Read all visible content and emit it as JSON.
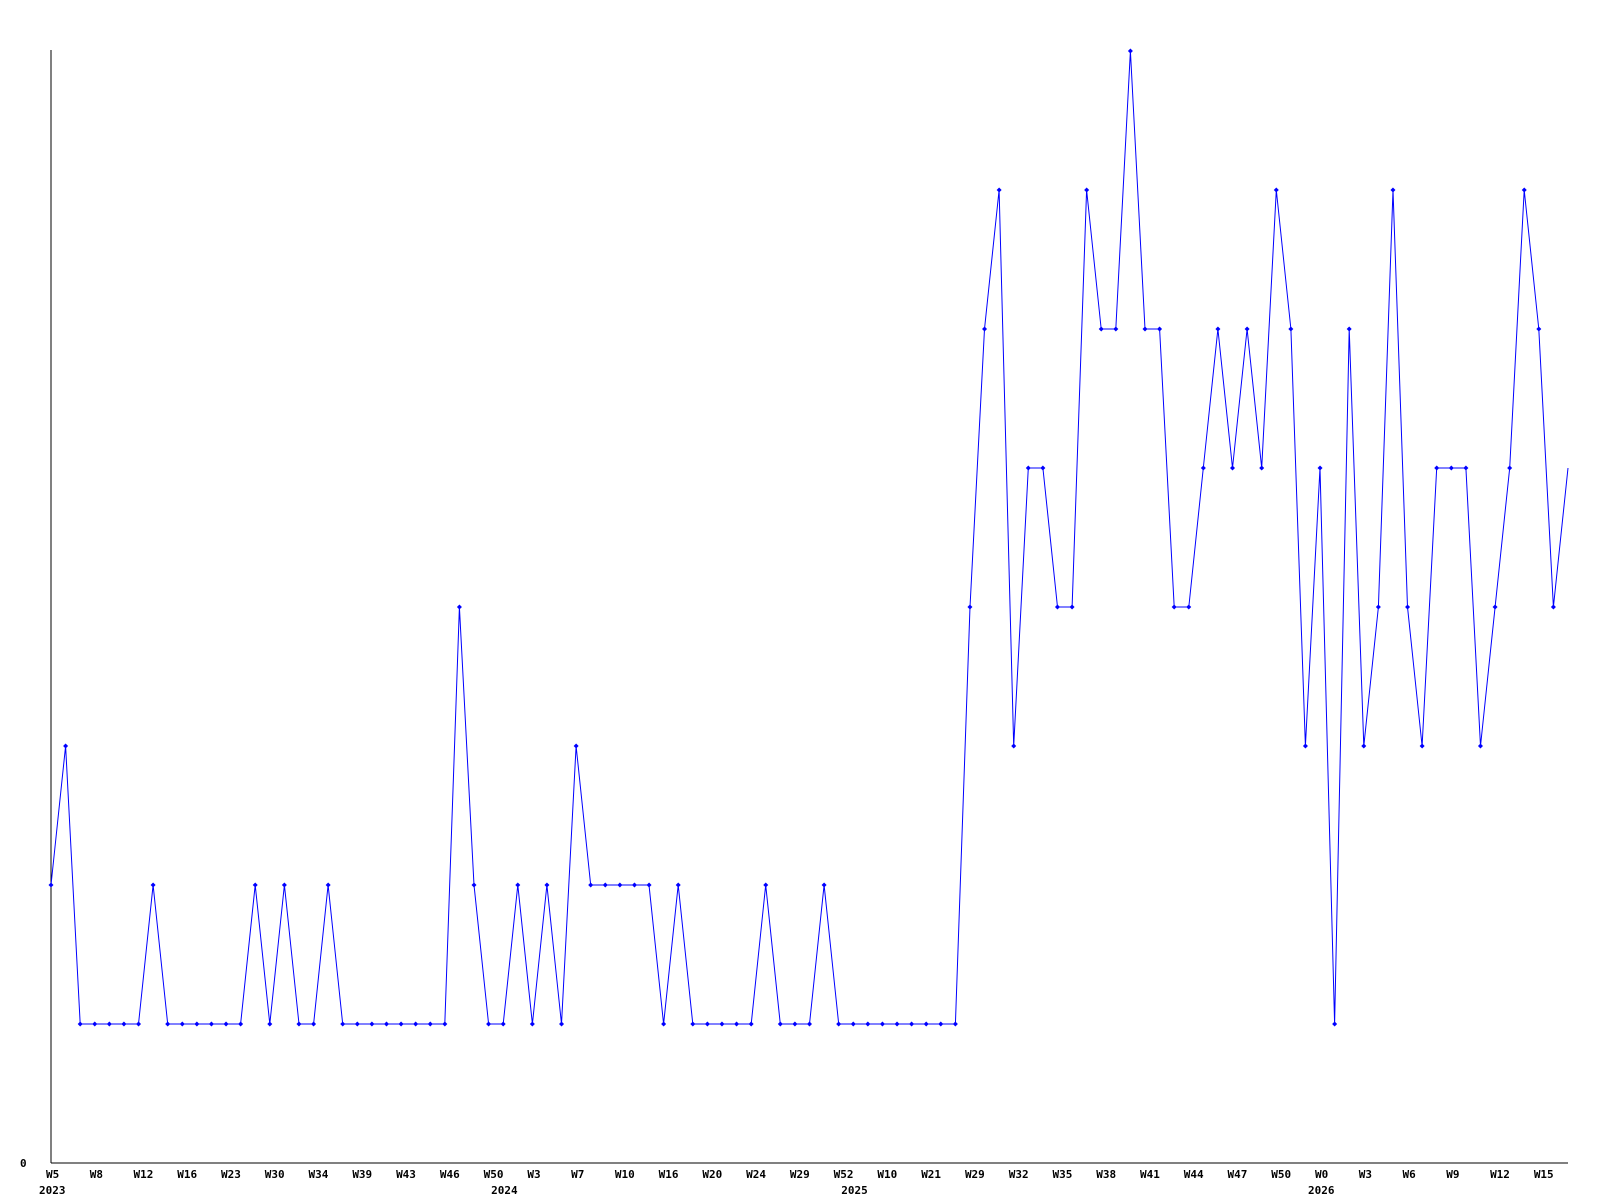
{
  "chart_data": {
    "type": "line",
    "title": "",
    "xlabel": "",
    "ylabel": "",
    "ylim": [
      0,
      8
    ],
    "y_tick_labels": [
      "0"
    ],
    "grid": false,
    "legend": "none",
    "series_color": "#0000ff",
    "x_tick_labels": [
      "W5",
      "W8",
      "W12",
      "W16",
      "W23",
      "W30",
      "W34",
      "W39",
      "W43",
      "W46",
      "W50",
      "W3",
      "W7",
      "W10",
      "W16",
      "W20",
      "W24",
      "W29",
      "W52",
      "W10",
      "W21",
      "W29",
      "W32",
      "W35",
      "W38",
      "W41",
      "W44",
      "W47",
      "W50",
      "W0",
      "W3",
      "W6",
      "W9",
      "W12",
      "W15"
    ],
    "x_tick_every": 3,
    "year_labels": [
      {
        "label": "2023",
        "index": 0
      },
      {
        "label": "2024",
        "index": 31
      },
      {
        "label": "2025",
        "index": 55
      },
      {
        "label": "2026",
        "index": 87
      }
    ],
    "series": [
      {
        "values": [
          2,
          3,
          1,
          1,
          1,
          1,
          1,
          2,
          1,
          1,
          1,
          1,
          1,
          1,
          2,
          1,
          2,
          1,
          1,
          2,
          1,
          1,
          1,
          1,
          1,
          1,
          1,
          1,
          4,
          2,
          1,
          1,
          2,
          1,
          2,
          1,
          3,
          2,
          2,
          2,
          2,
          2,
          1,
          2,
          1,
          1,
          1,
          1,
          1,
          2,
          1,
          1,
          1,
          2,
          1,
          1,
          1,
          1,
          1,
          1,
          1,
          1,
          1,
          4,
          6,
          7,
          3,
          5,
          5,
          4,
          4,
          7,
          6,
          6,
          8,
          6,
          6,
          4,
          4,
          5,
          6,
          5,
          6,
          5,
          7,
          6,
          3,
          5,
          1,
          6,
          3,
          4,
          7,
          4,
          3,
          5,
          5,
          5,
          3,
          4,
          5,
          7,
          6,
          4,
          5
        ]
      }
    ]
  }
}
